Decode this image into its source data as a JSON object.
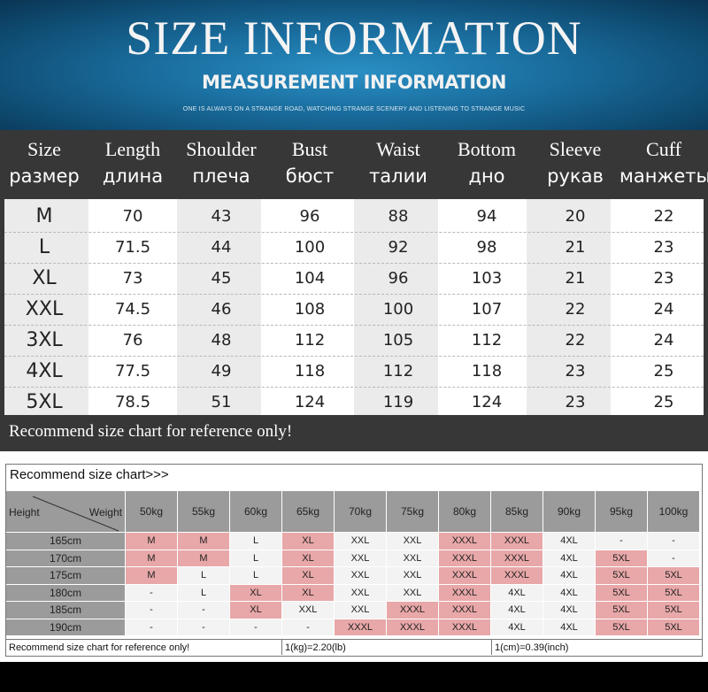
{
  "banner": {
    "title": "SIZE INFORMATION",
    "subtitle": "MEASUREMENT INFORMATION",
    "tagline": "ONE IS ALWAYS ON A STRANGE ROAD, WATCHING STRANGE SCENERY AND LISTENING TO STRANGE MUSIC"
  },
  "size_table": {
    "headers": [
      {
        "en": "Size",
        "ru": "размер"
      },
      {
        "en": "Length",
        "ru": "длина"
      },
      {
        "en": "Shoulder",
        "ru": "плеча"
      },
      {
        "en": "Bust",
        "ru": "бюст"
      },
      {
        "en": "Waist",
        "ru": "талии"
      },
      {
        "en": "Bottom",
        "ru": "дно"
      },
      {
        "en": "Sleeve",
        "ru": "рукав"
      },
      {
        "en": "Cuff",
        "ru": "манжеты"
      }
    ],
    "rows": [
      [
        "M",
        "70",
        "43",
        "96",
        "88",
        "94",
        "20",
        "22"
      ],
      [
        "L",
        "71.5",
        "44",
        "100",
        "92",
        "98",
        "21",
        "23"
      ],
      [
        "XL",
        "73",
        "45",
        "104",
        "96",
        "103",
        "21",
        "23"
      ],
      [
        "XXL",
        "74.5",
        "46",
        "108",
        "100",
        "107",
        "22",
        "24"
      ],
      [
        "3XL",
        "76",
        "48",
        "112",
        "105",
        "112",
        "22",
        "24"
      ],
      [
        "4XL",
        "77.5",
        "49",
        "118",
        "112",
        "118",
        "23",
        "25"
      ],
      [
        "5XL",
        "78.5",
        "51",
        "124",
        "119",
        "124",
        "23",
        "25"
      ]
    ],
    "note": "Recommend size chart for reference only!"
  },
  "recommend_chart": {
    "title": "Recommend size chart>>>",
    "corner_left": "Height",
    "corner_right": "Weight",
    "weights": [
      "50kg",
      "55kg",
      "60kg",
      "65kg",
      "70kg",
      "75kg",
      "80kg",
      "85kg",
      "90kg",
      "95kg",
      "100kg"
    ],
    "heights": [
      "165cm",
      "170cm",
      "175cm",
      "180cm",
      "185cm",
      "190cm"
    ],
    "cells": [
      [
        [
          "M",
          "pink"
        ],
        [
          "M",
          "pink"
        ],
        [
          "L",
          "plain"
        ],
        [
          "XL",
          "pink"
        ],
        [
          "XXL",
          "plain"
        ],
        [
          "XXL",
          "plain"
        ],
        [
          "XXXL",
          "pink"
        ],
        [
          "XXXL",
          "pink"
        ],
        [
          "4XL",
          "plain"
        ],
        [
          "-",
          "plain"
        ],
        [
          "-",
          "plain"
        ]
      ],
      [
        [
          "M",
          "pink"
        ],
        [
          "M",
          "pink"
        ],
        [
          "L",
          "plain"
        ],
        [
          "XL",
          "pink"
        ],
        [
          "XXL",
          "plain"
        ],
        [
          "XXL",
          "plain"
        ],
        [
          "XXXL",
          "pink"
        ],
        [
          "XXXL",
          "pink"
        ],
        [
          "4XL",
          "plain"
        ],
        [
          "5XL",
          "pink"
        ],
        [
          "-",
          "plain"
        ]
      ],
      [
        [
          "M",
          "pink"
        ],
        [
          "L",
          "plain"
        ],
        [
          "L",
          "plain"
        ],
        [
          "XL",
          "pink"
        ],
        [
          "XXL",
          "plain"
        ],
        [
          "XXL",
          "plain"
        ],
        [
          "XXXL",
          "pink"
        ],
        [
          "XXXL",
          "pink"
        ],
        [
          "4XL",
          "plain"
        ],
        [
          "5XL",
          "pink"
        ],
        [
          "5XL",
          "pink"
        ]
      ],
      [
        [
          "-",
          "plain"
        ],
        [
          "L",
          "plain"
        ],
        [
          "XL",
          "pink"
        ],
        [
          "XL",
          "pink"
        ],
        [
          "XXL",
          "plain"
        ],
        [
          "XXL",
          "plain"
        ],
        [
          "XXXL",
          "pink"
        ],
        [
          "4XL",
          "plain"
        ],
        [
          "4XL",
          "plain"
        ],
        [
          "5XL",
          "pink"
        ],
        [
          "5XL",
          "pink"
        ]
      ],
      [
        [
          "-",
          "plain"
        ],
        [
          "-",
          "plain"
        ],
        [
          "XL",
          "pink"
        ],
        [
          "XXL",
          "plain"
        ],
        [
          "XXL",
          "plain"
        ],
        [
          "XXXL",
          "pink"
        ],
        [
          "XXXL",
          "pink"
        ],
        [
          "4XL",
          "plain"
        ],
        [
          "4XL",
          "plain"
        ],
        [
          "5XL",
          "pink"
        ],
        [
          "5XL",
          "pink"
        ]
      ],
      [
        [
          "-",
          "plain"
        ],
        [
          "-",
          "plain"
        ],
        [
          "-",
          "plain"
        ],
        [
          "-",
          "plain"
        ],
        [
          "XXXL",
          "pink"
        ],
        [
          "XXXL",
          "pink"
        ],
        [
          "XXXL",
          "pink"
        ],
        [
          "4XL",
          "plain"
        ],
        [
          "4XL",
          "plain"
        ],
        [
          "5XL",
          "pink"
        ],
        [
          "5XL",
          "pink"
        ]
      ]
    ],
    "footer_note": "Recommend size chart for reference only!",
    "footer_kg": "1(kg)=2.20(lb)",
    "footer_cm": "1(cm)=0.39(inch)"
  },
  "colors": {
    "banner_blue": "#1a6e9f",
    "table_dark": "#373737",
    "band_gray": "#ebebeb",
    "header_gray": "#9b9b9b",
    "highlight_pink": "#e8a7a8"
  }
}
